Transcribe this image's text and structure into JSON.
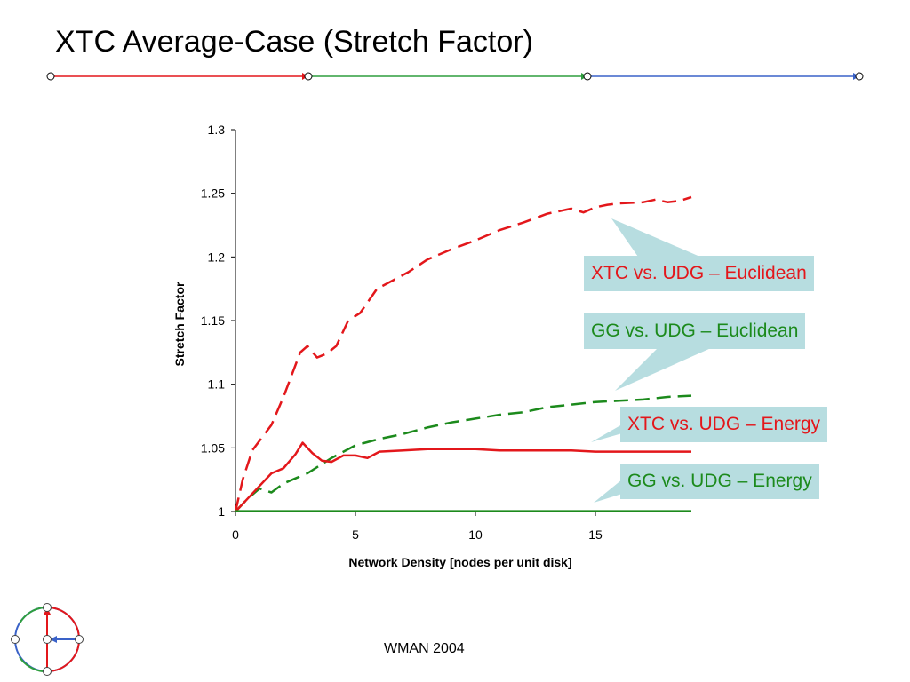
{
  "slide": {
    "title": "XTC Average-Case (Stretch Factor)",
    "footer": "WMAN 2004"
  },
  "colors": {
    "red": "#e3171b",
    "green": "#1c8a1c",
    "teal_line": "#2e9e3e",
    "blue": "#3a62c8",
    "callout_bg": "#b7dde0"
  },
  "callouts": [
    {
      "label": "XTC vs. UDG – Euclidean",
      "color": "#e3171b"
    },
    {
      "label": "GG vs. UDG – Euclidean",
      "color": "#1c8a1c"
    },
    {
      "label": "XTC vs. UDG – Energy",
      "color": "#e3171b"
    },
    {
      "label": "GG vs. UDG – Energy",
      "color": "#1c8a1c"
    }
  ],
  "chart_data": {
    "type": "line",
    "title": "",
    "xlabel": "Network Density [nodes per unit disk]",
    "ylabel": "Stretch Factor",
    "xlim": [
      0,
      19
    ],
    "ylim": [
      1,
      1.3
    ],
    "xticks": [
      "0",
      "5",
      "10",
      "15"
    ],
    "yticks": [
      "1",
      "1.05",
      "1.1",
      "1.15",
      "1.2",
      "1.25",
      "1.3"
    ],
    "grid": false,
    "series": [
      {
        "name": "XTC vs. UDG – Euclidean",
        "color": "#e3171b",
        "dashed": true,
        "x": [
          0,
          0.3,
          0.7,
          1.5,
          2,
          2.7,
          3,
          3.4,
          3.8,
          4.2,
          4.7,
          5.2,
          5.9,
          6.5,
          7.2,
          8,
          9,
          10,
          11,
          12,
          13,
          14,
          14.5,
          15,
          15.5,
          16,
          17,
          17.5,
          18,
          18.5,
          19
        ],
        "y": [
          1,
          1.025,
          1.048,
          1.068,
          1.09,
          1.125,
          1.13,
          1.121,
          1.124,
          1.13,
          1.15,
          1.156,
          1.175,
          1.181,
          1.188,
          1.198,
          1.206,
          1.213,
          1.221,
          1.227,
          1.234,
          1.238,
          1.235,
          1.239,
          1.241,
          1.242,
          1.243,
          1.245,
          1.243,
          1.244,
          1.247
        ]
      },
      {
        "name": "GG vs. UDG – Euclidean",
        "color": "#1c8a1c",
        "dashed": true,
        "x": [
          0,
          0.5,
          1,
          1.5,
          2,
          2.5,
          3,
          3.5,
          4,
          5,
          6,
          7,
          8,
          9,
          10,
          11,
          12,
          13,
          14,
          15,
          16,
          17,
          18,
          19
        ],
        "y": [
          1,
          1.01,
          1.018,
          1.015,
          1.022,
          1.026,
          1.03,
          1.036,
          1.042,
          1.052,
          1.057,
          1.061,
          1.066,
          1.07,
          1.073,
          1.076,
          1.078,
          1.082,
          1.084,
          1.086,
          1.087,
          1.088,
          1.09,
          1.091
        ]
      },
      {
        "name": "XTC vs. UDG – Energy",
        "color": "#e3171b",
        "dashed": false,
        "x": [
          0,
          0.5,
          1,
          1.5,
          2,
          2.5,
          2.8,
          3.2,
          3.6,
          4,
          4.5,
          5,
          5.5,
          6,
          7,
          8,
          9,
          10,
          11,
          12,
          13,
          14,
          15,
          16,
          17,
          18,
          19
        ],
        "y": [
          1,
          1.01,
          1.02,
          1.03,
          1.034,
          1.045,
          1.054,
          1.046,
          1.04,
          1.039,
          1.044,
          1.044,
          1.042,
          1.047,
          1.048,
          1.049,
          1.049,
          1.049,
          1.048,
          1.048,
          1.048,
          1.048,
          1.047,
          1.047,
          1.047,
          1.047,
          1.047
        ]
      },
      {
        "name": "GG vs. UDG – Energy",
        "color": "#1c8a1c",
        "dashed": false,
        "x": [
          0,
          19
        ],
        "y": [
          1.0003,
          1.0003
        ]
      }
    ]
  }
}
